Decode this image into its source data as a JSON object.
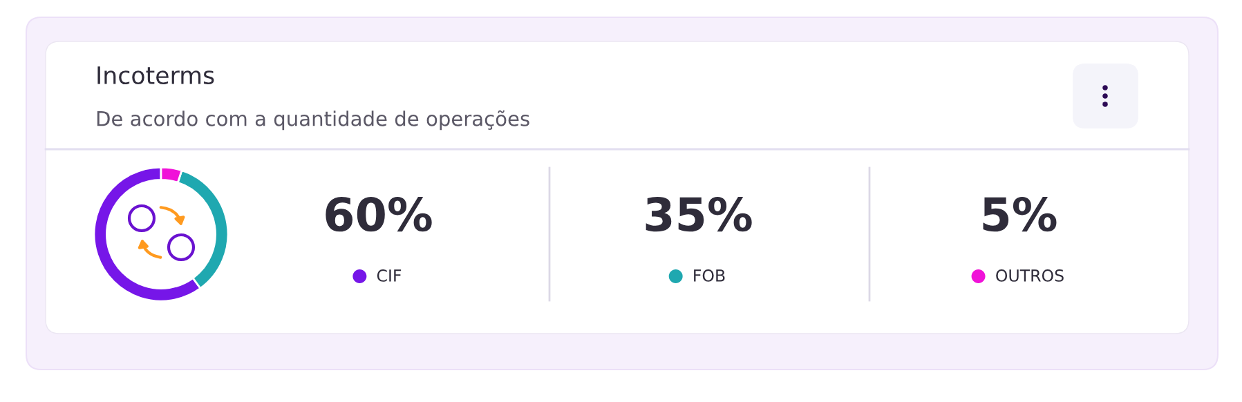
{
  "chart_data": {
    "type": "donut",
    "title": "Incoterms",
    "subtitle": "De acordo com a quantidade de operações",
    "categories": [
      "CIF",
      "FOB",
      "OUTROS"
    ],
    "values": [
      60,
      35,
      5
    ],
    "colors": [
      "#7616e8",
      "#1fa8b0",
      "#f012d8"
    ],
    "value_labels": [
      "60%",
      "35%",
      "5%"
    ],
    "legend": "right"
  }
}
